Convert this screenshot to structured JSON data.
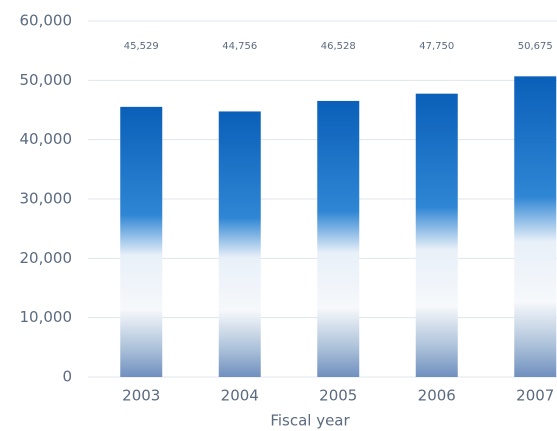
{
  "chart_data": {
    "type": "bar",
    "x_label": "Fiscal year",
    "categories": [
      "2003",
      "2004",
      "2005",
      "2006",
      "2007"
    ],
    "values": [
      45529,
      44756,
      46528,
      47750,
      50675
    ],
    "value_labels": [
      "45,529",
      "44,756",
      "46,528",
      "47,750",
      "50,675"
    ],
    "color": "#0a5fb8",
    "ylim": [
      0,
      60000
    ],
    "yticks": [
      0,
      {
        "value": 10000,
        "label": "10,000"
      },
      {
        "value": 20000,
        "label": "20,000"
      },
      {
        "value": 30000,
        "label": "30,000"
      },
      {
        "value": 40000,
        "label": "40,000"
      },
      {
        "value": 50000,
        "label": "50,000"
      },
      {
        "value": 60000,
        "label": "60,000"
      }
    ],
    "grid": true
  }
}
